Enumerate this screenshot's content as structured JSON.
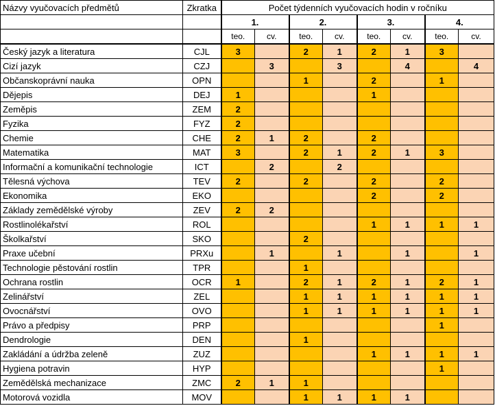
{
  "header": {
    "col_subject": "Názvy vyučovacích předmětů",
    "col_abbr": "Zkratka",
    "col_hours": "Počet týdenních vyučovacích hodin v ročníku",
    "years": [
      "1.",
      "2.",
      "3.",
      "4."
    ],
    "sub_teo": "teo.",
    "sub_cv": "cv."
  },
  "colors": {
    "teo_bg": "#FFC000",
    "cv_bg": "#FBD4B4"
  },
  "rows": [
    {
      "name": "Český jazyk a literatura",
      "abbr": "CJL",
      "vals": [
        "3",
        "",
        "2",
        "1",
        "2",
        "1",
        "3",
        ""
      ]
    },
    {
      "name": "Cizí jazyk",
      "abbr": "CZJ",
      "vals": [
        "",
        "3",
        "",
        "3",
        "",
        "4",
        "",
        "4"
      ]
    },
    {
      "name": "Občanskoprávní nauka",
      "abbr": "OPN",
      "vals": [
        "",
        "",
        "1",
        "",
        "2",
        "",
        "1",
        ""
      ]
    },
    {
      "name": "Dějepis",
      "abbr": "DEJ",
      "vals": [
        "1",
        "",
        "",
        "",
        "1",
        "",
        "",
        ""
      ]
    },
    {
      "name": "Zeměpis",
      "abbr": "ZEM",
      "vals": [
        "2",
        "",
        "",
        "",
        "",
        "",
        "",
        ""
      ]
    },
    {
      "name": "Fyzika",
      "abbr": "FYZ",
      "vals": [
        "2",
        "",
        "",
        "",
        "",
        "",
        "",
        ""
      ]
    },
    {
      "name": "Chemie",
      "abbr": "CHE",
      "vals": [
        "2",
        "1",
        "2",
        "",
        "2",
        "",
        "",
        ""
      ]
    },
    {
      "name": "Matematika",
      "abbr": "MAT",
      "vals": [
        "3",
        "",
        "2",
        "1",
        "2",
        "1",
        "3",
        ""
      ]
    },
    {
      "name": "Informační a komunikační technologie",
      "abbr": "ICT",
      "vals": [
        "",
        "2",
        "",
        "2",
        "",
        "",
        "",
        ""
      ]
    },
    {
      "name": "Tělesná výchova",
      "abbr": "TEV",
      "vals": [
        "2",
        "",
        "2",
        "",
        "2",
        "",
        "2",
        ""
      ]
    },
    {
      "name": "Ekonomika",
      "abbr": "EKO",
      "vals": [
        "",
        "",
        "",
        "",
        "2",
        "",
        "2",
        ""
      ]
    },
    {
      "name": "Základy zemědělské výroby",
      "abbr": "ZEV",
      "vals": [
        "2",
        "2",
        "",
        "",
        "",
        "",
        "",
        ""
      ]
    },
    {
      "name": "Rostlinolékařství",
      "abbr": "ROL",
      "vals": [
        "",
        "",
        "",
        "",
        "1",
        "1",
        "1",
        "1"
      ]
    },
    {
      "name": "Školkařství",
      "abbr": "SKO",
      "vals": [
        "",
        "",
        "2",
        "",
        "",
        "",
        "",
        ""
      ]
    },
    {
      "name": "Praxe učební",
      "abbr": "PRXu",
      "vals": [
        "",
        "1",
        "",
        "1",
        "",
        "1",
        "",
        "1"
      ]
    },
    {
      "name": "Technologie pěstování rostlin",
      "abbr": "TPR",
      "vals": [
        "",
        "",
        "1",
        "",
        "",
        "",
        "",
        ""
      ]
    },
    {
      "name": "Ochrana rostlin",
      "abbr": "OCR",
      "vals": [
        "1",
        "",
        "2",
        "1",
        "2",
        "1",
        "2",
        "1"
      ]
    },
    {
      "name": "Zelinářství",
      "abbr": "ZEL",
      "vals": [
        "",
        "",
        "1",
        "1",
        "1",
        "1",
        "1",
        "1"
      ]
    },
    {
      "name": "Ovocnářství",
      "abbr": "OVO",
      "vals": [
        "",
        "",
        "1",
        "1",
        "1",
        "1",
        "1",
        "1"
      ]
    },
    {
      "name": "Právo a předpisy",
      "abbr": "PRP",
      "vals": [
        "",
        "",
        "",
        "",
        "",
        "",
        "1",
        ""
      ]
    },
    {
      "name": "Dendrologie",
      "abbr": "DEN",
      "vals": [
        "",
        "",
        "1",
        "",
        "",
        "",
        "",
        ""
      ]
    },
    {
      "name": "Zakládání a údržba zeleně",
      "abbr": "ZUZ",
      "vals": [
        "",
        "",
        "",
        "",
        "1",
        "1",
        "1",
        "1"
      ]
    },
    {
      "name": "Hygiena potravin",
      "abbr": "HYP",
      "vals": [
        "",
        "",
        "",
        "",
        "",
        "",
        "1",
        ""
      ]
    },
    {
      "name": "Zemědělská mechanizace",
      "abbr": "ZMC",
      "vals": [
        "2",
        "1",
        "1",
        "",
        "",
        "",
        "",
        ""
      ]
    },
    {
      "name": "Motorová vozidla",
      "abbr": "MOV",
      "vals": [
        "",
        "",
        "1",
        "1",
        "1",
        "1",
        "",
        ""
      ]
    }
  ]
}
